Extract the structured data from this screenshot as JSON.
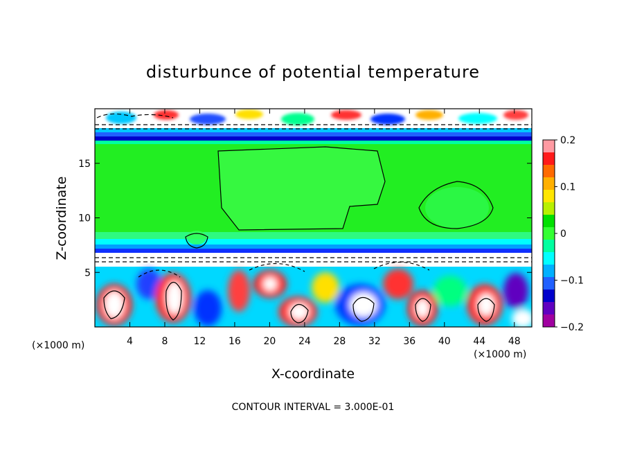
{
  "chart_data": {
    "type": "heatmap",
    "title": "disturbunce of potential temperature",
    "xlabel": "X-coordinate",
    "ylabel": "Z-coordinate",
    "x_unit": "(×1000 m)",
    "y_unit": "(×1000 m)",
    "xlim": [
      0,
      50
    ],
    "ylim": [
      0,
      20
    ],
    "xticks": [
      4,
      8,
      12,
      16,
      20,
      24,
      28,
      32,
      36,
      40,
      44,
      48
    ],
    "yticks": [
      5,
      10,
      15
    ],
    "colorbar": {
      "range": [
        -0.2,
        0.2
      ],
      "ticks": [
        0.2,
        0.1,
        0,
        -0.1,
        -0.2
      ],
      "tick_labels": [
        "0.2",
        "0.1",
        "0",
        "−0.1",
        "−0.2"
      ],
      "colors": [
        "#ff9aa2",
        "#ff1a1a",
        "#ff6a00",
        "#ffb000",
        "#ffe600",
        "#b8f000",
        "#00e000",
        "#33ff33",
        "#00ffa0",
        "#00ffff",
        "#00b0ff",
        "#2060ff",
        "#0000cc",
        "#6000c0",
        "#a000a0"
      ]
    },
    "contour_interval": "3.000E-01",
    "annotation": "CONTOUR INTERVAL = 3.000E-01"
  }
}
